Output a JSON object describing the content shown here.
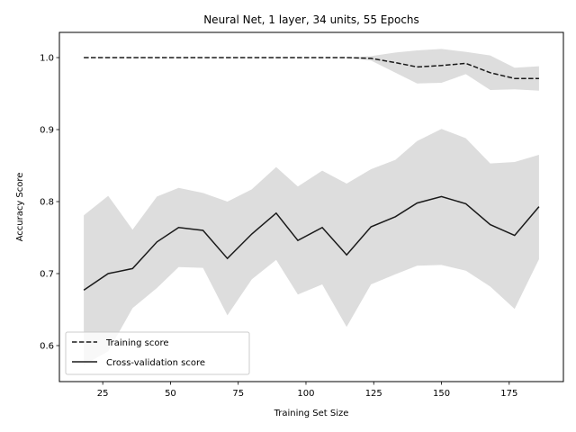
{
  "chart_data": {
    "type": "line",
    "title": "Neural Net, 1 layer, 34 units, 55 Epochs",
    "xlabel": "Training Set Size",
    "ylabel": "Accuracy Score",
    "xlim": [
      9,
      195
    ],
    "ylim": [
      0.55,
      1.035
    ],
    "xticks": [
      25,
      50,
      75,
      100,
      125,
      150,
      175
    ],
    "yticks": [
      0.6,
      0.7,
      0.8,
      0.9,
      1.0
    ],
    "yticks_text": [
      "0.6",
      "0.7",
      "0.8",
      "0.9",
      "1.0"
    ],
    "x": [
      18,
      27,
      36,
      45,
      53,
      62,
      71,
      80,
      89,
      97,
      106,
      115,
      124,
      133,
      141,
      150,
      159,
      168,
      177,
      186
    ],
    "grid": false,
    "legend_position": "lower-left",
    "series": [
      {
        "name": "Training score",
        "style": "dashed",
        "values": [
          1.0,
          1.0,
          1.0,
          1.0,
          1.0,
          1.0,
          1.0,
          1.0,
          1.0,
          1.0,
          1.0,
          1.0,
          0.999,
          0.993,
          0.987,
          0.989,
          0.992,
          0.979,
          0.971,
          0.971
        ],
        "band_lower": [
          1.0,
          1.0,
          1.0,
          1.0,
          1.0,
          1.0,
          1.0,
          1.0,
          1.0,
          1.0,
          1.0,
          1.0,
          0.996,
          0.979,
          0.964,
          0.965,
          0.977,
          0.955,
          0.956,
          0.954
        ],
        "band_upper": [
          1.0,
          1.0,
          1.0,
          1.0,
          1.0,
          1.0,
          1.0,
          1.0,
          1.0,
          1.0,
          1.0,
          1.0,
          1.002,
          1.007,
          1.01,
          1.012,
          1.008,
          1.003,
          0.986,
          0.988
        ]
      },
      {
        "name": "Cross-validation score",
        "style": "solid",
        "values": [
          0.677,
          0.7,
          0.707,
          0.744,
          0.764,
          0.76,
          0.721,
          0.755,
          0.784,
          0.746,
          0.764,
          0.726,
          0.765,
          0.779,
          0.798,
          0.807,
          0.797,
          0.768,
          0.753,
          0.793
        ],
        "band_lower": [
          0.573,
          0.592,
          0.652,
          0.68,
          0.709,
          0.708,
          0.642,
          0.692,
          0.719,
          0.671,
          0.685,
          0.626,
          0.685,
          0.699,
          0.711,
          0.712,
          0.704,
          0.682,
          0.651,
          0.72
        ],
        "band_upper": [
          0.781,
          0.808,
          0.761,
          0.807,
          0.819,
          0.812,
          0.8,
          0.817,
          0.848,
          0.821,
          0.843,
          0.825,
          0.845,
          0.858,
          0.884,
          0.901,
          0.888,
          0.853,
          0.855,
          0.865
        ]
      }
    ],
    "colors": {
      "line": "#1a1a1a",
      "band": "#dddddd",
      "axes": "#000000",
      "legend_border": "#cccccc"
    }
  }
}
